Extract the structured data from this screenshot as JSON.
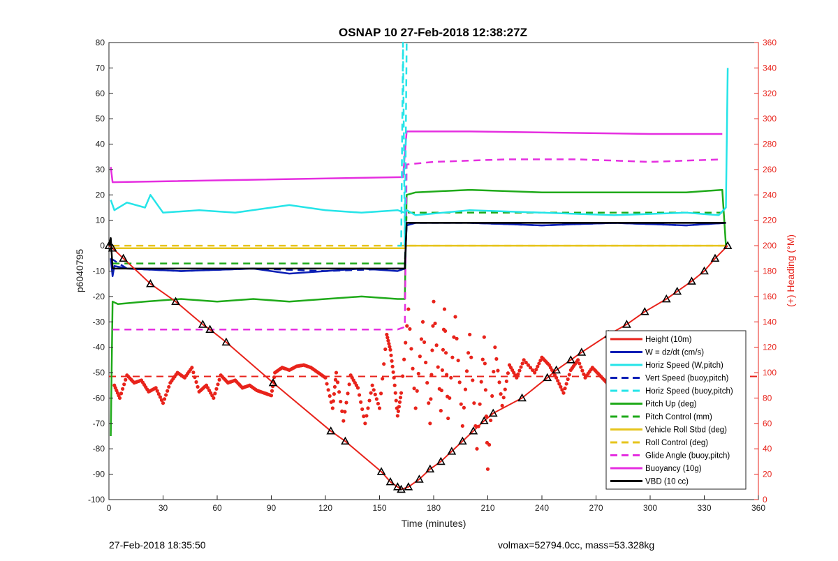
{
  "chart_data": {
    "type": "line",
    "title": "OSNAP 10 27-Feb-2018 12:38:27Z",
    "xlabel": "Time (minutes)",
    "ylabel_left": "p6040795",
    "ylabel_right": "(+) Heading (°M)",
    "xlim": [
      0,
      360
    ],
    "ylim_left": [
      -100,
      80
    ],
    "ylim_right": [
      0,
      360
    ],
    "x_ticks": [
      0,
      30,
      60,
      90,
      120,
      150,
      180,
      210,
      240,
      270,
      300,
      330,
      360
    ],
    "y_ticks_left": [
      -100,
      -90,
      -80,
      -70,
      -60,
      -50,
      -40,
      -30,
      -20,
      -10,
      0,
      10,
      20,
      30,
      40,
      50,
      60,
      70,
      80
    ],
    "y_ticks_right": [
      0,
      20,
      40,
      60,
      80,
      100,
      120,
      140,
      160,
      180,
      200,
      220,
      240,
      260,
      280,
      300,
      320,
      340,
      360
    ],
    "legend_position": "bottom-right",
    "series": [
      {
        "name": "Height (10m)",
        "color": "#e8231b",
        "style": "solid",
        "x": [
          0,
          2,
          8,
          23,
          37,
          52,
          56,
          65,
          91,
          123,
          131,
          151,
          156,
          160,
          162,
          166,
          172,
          178,
          184,
          190,
          196,
          202,
          208,
          213,
          229,
          243,
          248,
          256,
          262,
          277,
          287,
          297,
          309,
          315,
          323,
          330,
          336,
          343
        ],
        "y": [
          0,
          -1,
          -5,
          -15,
          -22,
          -31,
          -33,
          -38,
          -54,
          -73,
          -77,
          -89,
          -93,
          -95,
          -96,
          -95,
          -92,
          -88,
          -85,
          -81,
          -77,
          -73,
          -69,
          -66,
          -60,
          -52,
          -49,
          -45,
          -42,
          -35,
          -31,
          -26,
          -21,
          -18,
          -14,
          -10,
          -5,
          0
        ]
      },
      {
        "name": "W = dz/dt (cm/s)",
        "color": "#0b1fb5",
        "style": "solid",
        "x": [
          1,
          2,
          3,
          10,
          40,
          80,
          100,
          120,
          140,
          160,
          164,
          165,
          170,
          200,
          240,
          280,
          320,
          342
        ],
        "y": [
          -5,
          -12,
          -8,
          -9,
          -10,
          -9,
          -11,
          -10,
          -9,
          -10,
          -9,
          8,
          9,
          9,
          8,
          9,
          8,
          9
        ]
      },
      {
        "name": "Horiz Speed (W,pitch)",
        "color": "#25e4e8",
        "style": "solid",
        "x": [
          1,
          3,
          10,
          20,
          23,
          30,
          50,
          70,
          90,
          100,
          120,
          140,
          160,
          164,
          165,
          170,
          200,
          240,
          280,
          320,
          338,
          342,
          343
        ],
        "y": [
          18,
          14,
          17,
          15,
          20,
          13,
          14,
          13,
          15,
          16,
          14,
          13,
          14,
          13,
          14,
          12,
          14,
          13,
          12,
          13,
          12,
          15,
          70
        ]
      },
      {
        "name": "Vert Speed (buoy,pitch)",
        "color": "#0b1fb5",
        "style": "dashed",
        "x": [
          1,
          10,
          40,
          80,
          120,
          160,
          164,
          165,
          200,
          240,
          280,
          320,
          342
        ],
        "y": [
          -5,
          -9,
          -10,
          -9,
          -10,
          -9,
          -9,
          9,
          9,
          8,
          9,
          8,
          9
        ]
      },
      {
        "name": "Horiz Speed (buoy,pitch)",
        "color": "#25e4e8",
        "style": "dashed",
        "x": [
          160,
          162,
          163,
          164,
          165
        ],
        "y": [
          0,
          0,
          80,
          0,
          80
        ]
      },
      {
        "name": "Pitch Up (deg)",
        "color": "#1faa1a",
        "style": "solid",
        "x": [
          1,
          2,
          5,
          20,
          40,
          60,
          80,
          100,
          120,
          140,
          160,
          164,
          165,
          170,
          200,
          240,
          280,
          320,
          340,
          342
        ],
        "y": [
          -75,
          -22,
          -23,
          -22,
          -21,
          -22,
          -21,
          -22,
          -21,
          -20,
          -21,
          -21,
          20,
          21,
          22,
          21,
          21,
          21,
          22,
          0
        ]
      },
      {
        "name": "Pitch Control (mm)",
        "color": "#1faa1a",
        "style": "dashed",
        "x": [
          2,
          164,
          165,
          340
        ],
        "y": [
          -7,
          -7,
          13,
          13
        ]
      },
      {
        "name": "Vehicle Roll Stbd (deg)",
        "color": "#e6c41c",
        "style": "solid",
        "x": [
          2,
          10,
          40,
          80,
          120,
          160,
          164,
          165,
          200,
          240,
          280,
          320,
          342
        ],
        "y": [
          -1,
          -1,
          -1,
          -1,
          -1,
          -1,
          -1,
          0,
          0,
          0,
          0,
          0,
          0
        ]
      },
      {
        "name": "Roll Control (deg)",
        "color": "#e6c41c",
        "style": "dashed",
        "x": [
          2,
          160,
          164,
          342
        ],
        "y": [
          0,
          0,
          0,
          0
        ]
      },
      {
        "name": "Glide Angle (buoy,pitch)",
        "color": "#e52ee0",
        "style": "dashed",
        "x": [
          2,
          20,
          60,
          100,
          140,
          160,
          164,
          165,
          180,
          220,
          260,
          300,
          340
        ],
        "y": [
          -33,
          -33,
          -33,
          -33,
          -33,
          -33,
          -32,
          32,
          33,
          34,
          34,
          33,
          34
        ]
      },
      {
        "name": "Buoyancy (10g)",
        "color": "#e52ee0",
        "style": "solid",
        "x": [
          1,
          2,
          162,
          163,
          165,
          166,
          200,
          300,
          340
        ],
        "y": [
          31,
          25,
          27,
          27,
          45,
          45,
          45,
          44,
          44
        ]
      },
      {
        "name": "VBD (10 cc)",
        "color": "#000000",
        "style": "solid",
        "x": [
          0,
          1,
          2,
          3,
          10,
          60,
          120,
          160,
          164,
          165,
          170,
          200,
          260,
          300,
          342
        ],
        "y": [
          0,
          3,
          -9,
          -9,
          -9,
          -9,
          -9,
          -9,
          -9,
          9,
          9,
          9,
          9,
          9,
          9
        ]
      }
    ],
    "heading_series": {
      "name": "Heading",
      "color": "#e8231b",
      "x": [
        3,
        6,
        10,
        14,
        18,
        22,
        26,
        30,
        34,
        38,
        42,
        46,
        50,
        54,
        58,
        62,
        66,
        70,
        74,
        78,
        82,
        86,
        90,
        92,
        96,
        100,
        104,
        108,
        112,
        116,
        120,
        124,
        126,
        130,
        134,
        138,
        142,
        146,
        150,
        154,
        156,
        158,
        160,
        162,
        166,
        170,
        174,
        178,
        180,
        184,
        186,
        188,
        192,
        196,
        200,
        204,
        208,
        210,
        214,
        218,
        222,
        226,
        230,
        236,
        240,
        244,
        248,
        252,
        256,
        260,
        264,
        268,
        272,
        276,
        280,
        284,
        288,
        292,
        296,
        300,
        304,
        308,
        312,
        316,
        320,
        324,
        328,
        332,
        336,
        340
      ],
      "y": [
        90,
        80,
        98,
        92,
        94,
        85,
        88,
        76,
        92,
        100,
        96,
        104,
        85,
        90,
        80,
        98,
        92,
        94,
        88,
        90,
        86,
        84,
        82,
        100,
        104,
        102,
        105,
        106,
        104,
        100,
        96,
        72,
        100,
        62,
        98,
        88,
        60,
        90,
        72,
        130,
        118,
        96,
        66,
        84,
        150,
        72,
        140,
        60,
        156,
        70,
        150,
        64,
        144,
        58,
        130,
        40,
        128,
        24,
        120,
        74,
        106,
        96,
        110,
        100,
        112,
        106,
        96,
        84,
        102,
        110,
        96,
        104,
        98,
        92,
        106,
        110,
        98,
        112,
        100,
        104,
        96,
        102,
        110,
        98,
        104,
        106,
        96,
        108,
        112,
        128
      ]
    },
    "heading_mean": {
      "name": "Heading mean",
      "color": "#e8231b",
      "style": "dashed",
      "value": 97
    }
  },
  "footer": {
    "date_text": "27-Feb-2018 18:35:50",
    "volmax_text": "volmax=52794.0cc, mass=53.328kg"
  }
}
